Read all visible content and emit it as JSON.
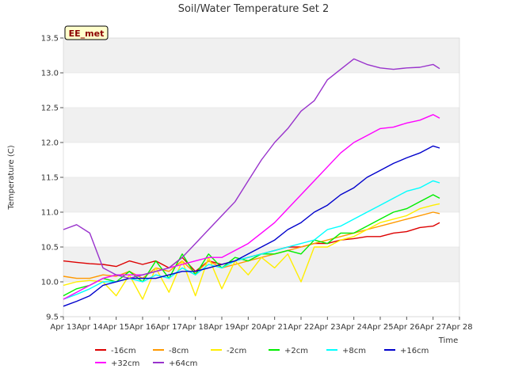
{
  "chart_data": {
    "type": "line",
    "title": "Soil/Water Temperature Set 2",
    "xlabel": "Time",
    "ylabel": "Temperature (C)",
    "badge": "EE_met",
    "xlim": [
      "2024-04-13",
      "2024-04-28"
    ],
    "ylim": [
      9.5,
      13.5
    ],
    "x_ticks": [
      "Apr 13",
      "Apr 14",
      "Apr 15",
      "Apr 16",
      "Apr 17",
      "Apr 18",
      "Apr 19",
      "Apr 20",
      "Apr 21",
      "Apr 22",
      "Apr 23",
      "Apr 24",
      "Apr 25",
      "Apr 26",
      "Apr 27",
      "Apr 28"
    ],
    "y_ticks": [
      "9.5",
      "10.0",
      "10.5",
      "11.0",
      "11.5",
      "12.0",
      "12.5",
      "13.0",
      "13.5"
    ],
    "grid": "horizontal bands",
    "legend_position": "bottom",
    "x": [
      "2024-04-13",
      "2024-04-13T12:00",
      "2024-04-14",
      "2024-04-14T12:00",
      "2024-04-15",
      "2024-04-15T12:00",
      "2024-04-16",
      "2024-04-16T12:00",
      "2024-04-17",
      "2024-04-17T12:00",
      "2024-04-18",
      "2024-04-18T12:00",
      "2024-04-19",
      "2024-04-19T12:00",
      "2024-04-20",
      "2024-04-20T12:00",
      "2024-04-21",
      "2024-04-21T12:00",
      "2024-04-22",
      "2024-04-22T12:00",
      "2024-04-23",
      "2024-04-23T12:00",
      "2024-04-24",
      "2024-04-24T12:00",
      "2024-04-25",
      "2024-04-25T12:00",
      "2024-04-26",
      "2024-04-26T12:00",
      "2024-04-27",
      "2024-04-27T06:00"
    ],
    "series": [
      {
        "name": "-16cm",
        "color": "#dd0000",
        "values": [
          10.3,
          10.28,
          10.26,
          10.25,
          10.22,
          10.3,
          10.25,
          10.3,
          10.2,
          10.35,
          10.15,
          10.3,
          10.25,
          10.3,
          10.35,
          10.4,
          10.45,
          10.5,
          10.5,
          10.55,
          10.55,
          10.6,
          10.62,
          10.65,
          10.65,
          10.7,
          10.72,
          10.78,
          10.8,
          10.85
        ]
      },
      {
        "name": "-8cm",
        "color": "#ff9900",
        "values": [
          10.08,
          10.05,
          10.05,
          10.1,
          10.08,
          10.15,
          10.05,
          10.2,
          10.15,
          10.3,
          10.12,
          10.3,
          10.2,
          10.25,
          10.3,
          10.35,
          10.4,
          10.45,
          10.5,
          10.55,
          10.6,
          10.65,
          10.7,
          10.75,
          10.8,
          10.85,
          10.9,
          10.95,
          11.0,
          10.98
        ]
      },
      {
        "name": "-2cm",
        "color": "#ffee00",
        "values": [
          9.95,
          10.0,
          10.02,
          10.0,
          9.8,
          10.1,
          9.75,
          10.2,
          9.85,
          10.3,
          9.8,
          10.35,
          9.9,
          10.3,
          10.1,
          10.35,
          10.2,
          10.4,
          10.0,
          10.5,
          10.5,
          10.6,
          10.65,
          10.75,
          10.85,
          10.9,
          10.95,
          11.05,
          11.1,
          11.12
        ]
      },
      {
        "name": "+2cm",
        "color": "#00ee00",
        "values": [
          9.8,
          9.9,
          9.95,
          10.05,
          10.0,
          10.15,
          10.0,
          10.3,
          10.05,
          10.4,
          10.1,
          10.4,
          10.2,
          10.35,
          10.3,
          10.4,
          10.4,
          10.45,
          10.4,
          10.6,
          10.55,
          10.7,
          10.7,
          10.8,
          10.9,
          11.0,
          11.05,
          11.15,
          11.25,
          11.2
        ]
      },
      {
        "name": "+8cm",
        "color": "#00ffff",
        "values": [
          9.75,
          9.82,
          9.9,
          10.0,
          10.0,
          10.05,
          10.0,
          10.1,
          10.05,
          10.2,
          10.1,
          10.25,
          10.2,
          10.3,
          10.35,
          10.4,
          10.45,
          10.5,
          10.55,
          10.6,
          10.75,
          10.8,
          10.9,
          11.0,
          11.1,
          11.2,
          11.3,
          11.35,
          11.45,
          11.42
        ]
      },
      {
        "name": "+16cm",
        "color": "#0000cc",
        "values": [
          9.65,
          9.72,
          9.8,
          9.95,
          10.0,
          10.05,
          10.05,
          10.05,
          10.1,
          10.15,
          10.15,
          10.2,
          10.25,
          10.3,
          10.4,
          10.5,
          10.6,
          10.75,
          10.85,
          11.0,
          11.1,
          11.25,
          11.35,
          11.5,
          11.6,
          11.7,
          11.78,
          11.85,
          11.95,
          11.92
        ]
      },
      {
        "name": "+32cm",
        "color": "#ff00ff",
        "values": [
          9.75,
          9.85,
          9.95,
          10.05,
          10.1,
          10.1,
          10.1,
          10.15,
          10.2,
          10.25,
          10.3,
          10.35,
          10.35,
          10.45,
          10.55,
          10.7,
          10.85,
          11.05,
          11.25,
          11.45,
          11.65,
          11.85,
          12.0,
          12.1,
          12.2,
          12.22,
          12.28,
          12.32,
          12.4,
          12.35
        ]
      },
      {
        "name": "+64cm",
        "color": "#9933cc",
        "values": [
          10.75,
          10.82,
          10.7,
          10.2,
          10.1,
          10.05,
          10.1,
          10.15,
          10.2,
          10.35,
          10.55,
          10.75,
          10.95,
          11.15,
          11.45,
          11.75,
          12.0,
          12.2,
          12.45,
          12.6,
          12.9,
          13.05,
          13.2,
          13.12,
          13.07,
          13.05,
          13.07,
          13.08,
          13.12,
          13.06
        ]
      }
    ]
  }
}
